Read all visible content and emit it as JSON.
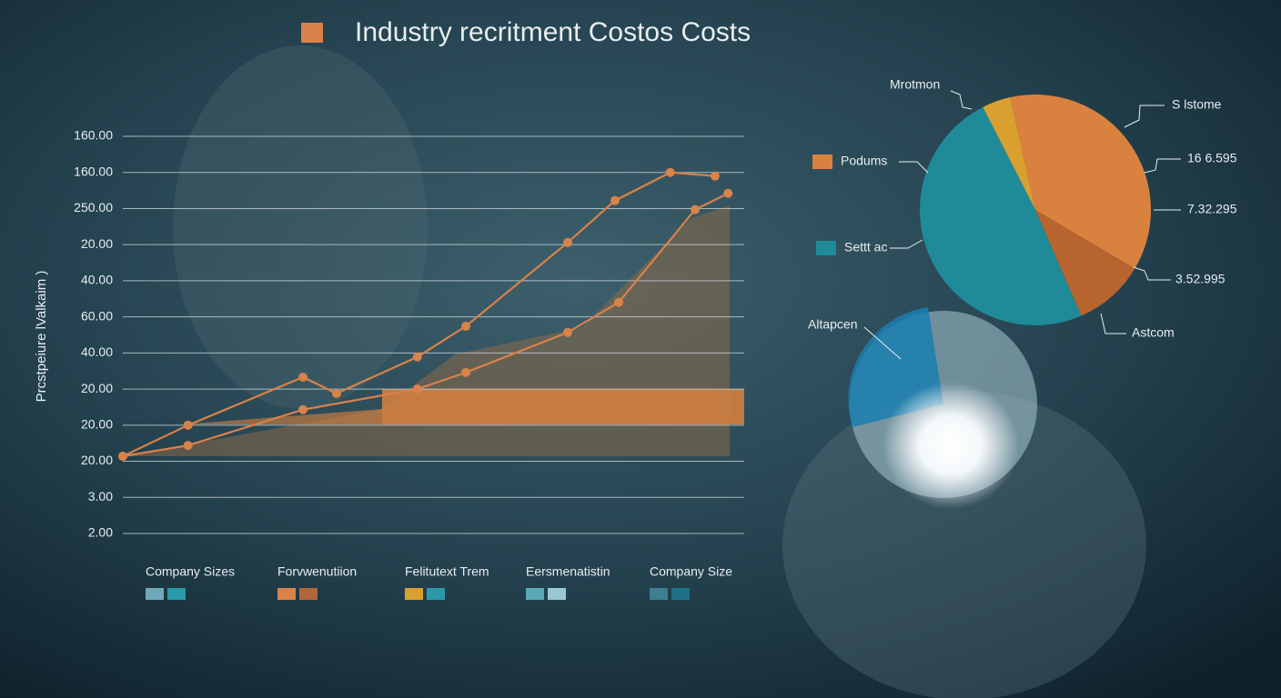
{
  "chart_data": [
    {
      "type": "line",
      "title": "Industry recritment Costos Costs",
      "title_color": "#d9824a",
      "ylabel": "Prcstpeiure lValkaim )",
      "ylim": [
        0,
        11
      ],
      "yticks": [
        {
          "value": 11,
          "label": "160.00"
        },
        {
          "value": 10,
          "label": "160.00"
        },
        {
          "value": 9,
          "label": "250.00"
        },
        {
          "value": 8,
          "label": "20.00"
        },
        {
          "value": 7,
          "label": "40.00"
        },
        {
          "value": 6,
          "label": "60.00"
        },
        {
          "value": 5,
          "label": "40.00"
        },
        {
          "value": 4,
          "label": "20.00"
        },
        {
          "value": 3,
          "label": "20.00"
        },
        {
          "value": 2,
          "label": "20.00"
        },
        {
          "value": 1,
          "label": "3.00"
        },
        {
          "value": 0,
          "label": "2.00"
        }
      ],
      "xlim": [
        0,
        100
      ],
      "grid": true,
      "series": [
        {
          "color": "#d9824a",
          "x": [
            0,
            10.5,
            29.0,
            34.4,
            47.4,
            55.2,
            71.6,
            79.2,
            88.1,
            95.3
          ],
          "values": [
            2.14,
            3.0,
            4.33,
            3.88,
            4.89,
            5.74,
            8.06,
            9.22,
            10.0,
            9.9
          ]
        },
        {
          "color": "#d9824a",
          "x": [
            0,
            10.5,
            29.0,
            47.4,
            55.2,
            71.6,
            79.8,
            92.1,
            97.4
          ],
          "values": [
            2.14,
            2.44,
            3.43,
            4.0,
            4.46,
            5.57,
            6.4,
            8.97,
            9.42
          ]
        }
      ],
      "legend": [
        {
          "label": "Company Sizes",
          "colors": [
            "#6fa8b8",
            "#2a9aa8"
          ]
        },
        {
          "label": "Forvwenutiion",
          "colors": [
            "#d9824a",
            "#b0683a"
          ]
        },
        {
          "label": "Felitutext Trem",
          "colors": [
            "#d9a030",
            "#2a9aa8"
          ]
        },
        {
          "label": "Eersmenatistin",
          "colors": [
            "#5aa8b8",
            "#9ac8d0"
          ]
        },
        {
          "label": "Company Size",
          "colors": [
            "#3d7f90",
            "#1f6f88"
          ]
        }
      ]
    },
    {
      "type": "pie",
      "values": [
        4,
        37,
        10,
        49
      ],
      "colors": [
        "#d9a030",
        "#d9823f",
        "#b8642e",
        "#1f8a98"
      ],
      "annotations": [
        "Mrotmon",
        "S lstome",
        "16 6.595",
        "7.32.295",
        "3.52.995",
        "Astcom"
      ],
      "legend": [
        {
          "label": "Podums",
          "color": "#d9823f"
        },
        {
          "label": "Settt ac",
          "color": "#1f8a98"
        }
      ],
      "inset_label": "Altapcen"
    }
  ]
}
